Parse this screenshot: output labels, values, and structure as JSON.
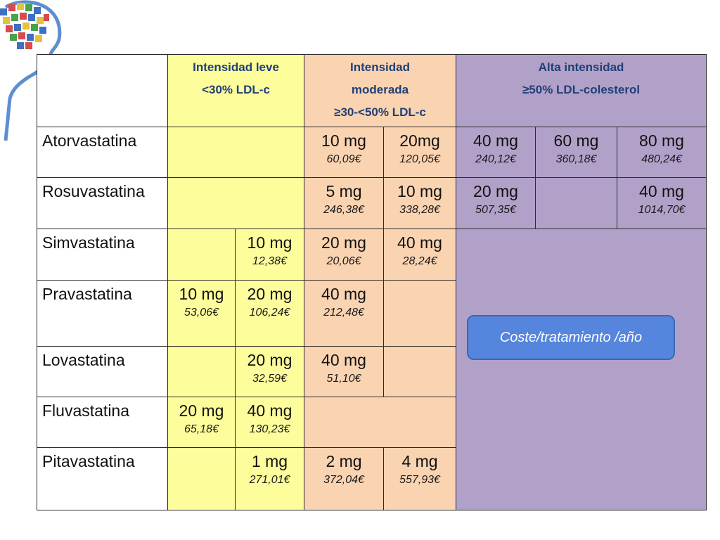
{
  "header": {
    "low_line1": "Intensidad leve",
    "low_line2": "<30%  LDL-c",
    "mod_line1": "Intensidad",
    "mod_line2": "moderada",
    "mod_line3": "≥30-<50% LDL-c",
    "high_line1": "Alta intensidad",
    "high_line2": "≥50% LDL-colesterol"
  },
  "rows": {
    "atorvastatina": {
      "name": "Atorvastatina",
      "d10": "10 mg",
      "p10": "60,09€",
      "d20": "20mg",
      "p20": "120,05€",
      "d40": "40 mg",
      "p40": "240,12€",
      "d60": "60 mg",
      "p60": "360,18€",
      "d80": "80 mg",
      "p80": "480,24€"
    },
    "rosuvastatina": {
      "name": "Rosuvastatina",
      "d5": "5 mg",
      "p5": "246,38€",
      "d10": "10 mg",
      "p10": "338,28€",
      "d20": "20 mg",
      "p20": "507,35€",
      "d40": "40 mg",
      "p40": "1014,70€"
    },
    "simvastatina": {
      "name": "Simvastatina",
      "d10": "10 mg",
      "p10": "12,38€",
      "d20": "20 mg",
      "p20": "20,06€",
      "d40": "40 mg",
      "p40": "28,24€"
    },
    "pravastatina": {
      "name": "Pravastatina",
      "d10": "10 mg",
      "p10": "53,06€",
      "d20": "20 mg",
      "p20": "106,24€",
      "d40": "40 mg",
      "p40": "212,48€"
    },
    "lovastatina": {
      "name": "Lovastatina",
      "d20": "20 mg",
      "p20": "32,59€",
      "d40": "40 mg",
      "p40": "51,10€"
    },
    "fluvastatina": {
      "name": "Fluvastatina",
      "d20": "20 mg",
      "p20": "65,18€",
      "d40": "40 mg",
      "p40": "130,23€"
    },
    "pitavastatina": {
      "name": "Pitavastatina",
      "d1": "1 mg",
      "p1": "271,01€",
      "d2": "2 mg",
      "p2": "372,04€",
      "d4": "4 mg",
      "p4": "557,93€"
    }
  },
  "cost_label": "Coste/tratamiento /año",
  "colors": {
    "low_intensity": "#fdfd9c",
    "moderate_intensity": "#fad3b1",
    "high_intensity": "#b1a1c8",
    "header_text": "#1f3f78",
    "cost_box": "#5585dc"
  }
}
